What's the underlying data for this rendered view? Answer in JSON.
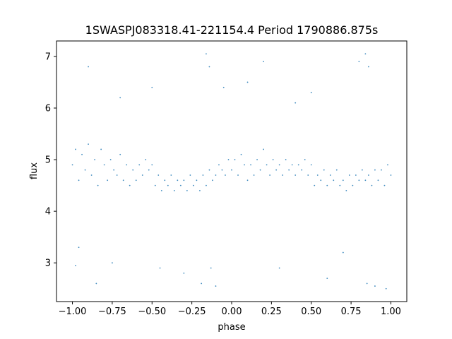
{
  "chart_data": {
    "type": "scatter",
    "title": "1SWASPJ083318.41-221154.4 Period 1790886.875s",
    "xlabel": "phase",
    "ylabel": "flux",
    "xlim": [
      -1.1,
      1.1
    ],
    "ylim": [
      2.25,
      7.3
    ],
    "x_ticks": [
      -1.0,
      -0.75,
      -0.5,
      -0.25,
      0.0,
      0.25,
      0.5,
      0.75,
      1.0
    ],
    "x_tick_labels": [
      "−1.00",
      "−0.75",
      "−0.50",
      "−0.25",
      "0.00",
      "0.25",
      "0.50",
      "0.75",
      "1.00"
    ],
    "y_ticks": [
      3,
      4,
      5,
      6,
      7
    ],
    "y_tick_labels": [
      "3",
      "4",
      "5",
      "6",
      "7"
    ],
    "grid": false,
    "legend": "none",
    "point_color": "#1f77b4",
    "series": [
      {
        "points": [
          [
            -1.0,
            4.9
          ],
          [
            -0.98,
            5.2
          ],
          [
            -0.96,
            4.6
          ],
          [
            -0.94,
            5.1
          ],
          [
            -0.92,
            4.8
          ],
          [
            -0.9,
            5.3
          ],
          [
            -0.88,
            4.7
          ],
          [
            -0.86,
            5.0
          ],
          [
            -0.84,
            4.5
          ],
          [
            -0.82,
            5.2
          ],
          [
            -0.8,
            4.9
          ],
          [
            -0.78,
            4.6
          ],
          [
            -0.76,
            5.0
          ],
          [
            -0.74,
            4.8
          ],
          [
            -0.72,
            4.7
          ],
          [
            -0.7,
            5.1
          ],
          [
            -0.68,
            4.6
          ],
          [
            -0.66,
            4.9
          ],
          [
            -0.64,
            4.5
          ],
          [
            -0.62,
            4.8
          ],
          [
            -0.6,
            4.6
          ],
          [
            -0.58,
            4.9
          ],
          [
            -0.56,
            4.7
          ],
          [
            -0.54,
            5.0
          ],
          [
            -0.52,
            4.8
          ],
          [
            -0.5,
            4.9
          ],
          [
            -0.48,
            4.5
          ],
          [
            -0.46,
            4.7
          ],
          [
            -0.44,
            4.4
          ],
          [
            -0.42,
            4.6
          ],
          [
            -0.4,
            4.5
          ],
          [
            -0.38,
            4.7
          ],
          [
            -0.36,
            4.4
          ],
          [
            -0.34,
            4.6
          ],
          [
            -0.32,
            4.5
          ],
          [
            -0.3,
            4.6
          ],
          [
            -0.28,
            4.4
          ],
          [
            -0.26,
            4.7
          ],
          [
            -0.24,
            4.5
          ],
          [
            -0.22,
            4.6
          ],
          [
            -0.2,
            4.4
          ],
          [
            -0.18,
            4.7
          ],
          [
            -0.16,
            4.5
          ],
          [
            -0.14,
            4.8
          ],
          [
            -0.12,
            4.6
          ],
          [
            -0.1,
            4.7
          ],
          [
            -0.08,
            4.9
          ],
          [
            -0.06,
            4.8
          ],
          [
            -0.04,
            4.7
          ],
          [
            -0.02,
            5.0
          ],
          [
            0.0,
            4.8
          ],
          [
            0.02,
            5.0
          ],
          [
            0.04,
            4.7
          ],
          [
            0.06,
            5.1
          ],
          [
            0.08,
            4.9
          ],
          [
            0.1,
            4.6
          ],
          [
            0.12,
            4.9
          ],
          [
            0.14,
            4.7
          ],
          [
            0.16,
            5.0
          ],
          [
            0.18,
            4.8
          ],
          [
            0.2,
            5.2
          ],
          [
            0.22,
            4.9
          ],
          [
            0.24,
            4.7
          ],
          [
            0.26,
            5.0
          ],
          [
            0.28,
            4.8
          ],
          [
            0.3,
            4.9
          ],
          [
            0.32,
            4.7
          ],
          [
            0.34,
            5.0
          ],
          [
            0.36,
            4.8
          ],
          [
            0.38,
            4.9
          ],
          [
            0.4,
            4.7
          ],
          [
            0.42,
            4.9
          ],
          [
            0.44,
            4.8
          ],
          [
            0.46,
            5.0
          ],
          [
            0.48,
            4.7
          ],
          [
            0.5,
            4.9
          ],
          [
            0.52,
            4.5
          ],
          [
            0.54,
            4.7
          ],
          [
            0.56,
            4.6
          ],
          [
            0.58,
            4.8
          ],
          [
            0.6,
            4.5
          ],
          [
            0.62,
            4.7
          ],
          [
            0.64,
            4.6
          ],
          [
            0.66,
            4.8
          ],
          [
            0.68,
            4.5
          ],
          [
            0.7,
            4.6
          ],
          [
            0.72,
            4.4
          ],
          [
            0.74,
            4.7
          ],
          [
            0.76,
            4.5
          ],
          [
            0.78,
            4.7
          ],
          [
            0.8,
            4.6
          ],
          [
            0.82,
            4.8
          ],
          [
            0.84,
            4.6
          ],
          [
            0.86,
            4.7
          ],
          [
            0.88,
            4.5
          ],
          [
            0.9,
            4.8
          ],
          [
            0.92,
            4.6
          ],
          [
            0.94,
            4.8
          ],
          [
            0.96,
            4.5
          ],
          [
            0.98,
            4.9
          ],
          [
            1.0,
            4.7
          ],
          [
            -0.96,
            3.3
          ],
          [
            -0.9,
            6.8
          ],
          [
            -0.75,
            3.0
          ],
          [
            -0.5,
            6.4
          ],
          [
            -0.45,
            2.9
          ],
          [
            -0.19,
            2.6
          ],
          [
            -0.16,
            7.05
          ],
          [
            -0.14,
            6.8
          ],
          [
            -0.13,
            2.9
          ],
          [
            -0.1,
            2.55
          ],
          [
            -0.05,
            6.4
          ],
          [
            0.1,
            6.5
          ],
          [
            0.3,
            2.9
          ],
          [
            0.5,
            6.3
          ],
          [
            0.8,
            6.9
          ],
          [
            0.84,
            7.05
          ],
          [
            0.85,
            2.6
          ],
          [
            0.86,
            6.8
          ],
          [
            0.9,
            2.55
          ],
          [
            0.97,
            2.5
          ],
          [
            -0.98,
            2.95
          ],
          [
            0.2,
            6.9
          ],
          [
            -0.3,
            2.8
          ],
          [
            0.6,
            2.7
          ],
          [
            -0.7,
            6.2
          ],
          [
            0.4,
            6.1
          ],
          [
            0.7,
            3.2
          ],
          [
            -0.85,
            2.6
          ]
        ]
      }
    ]
  }
}
